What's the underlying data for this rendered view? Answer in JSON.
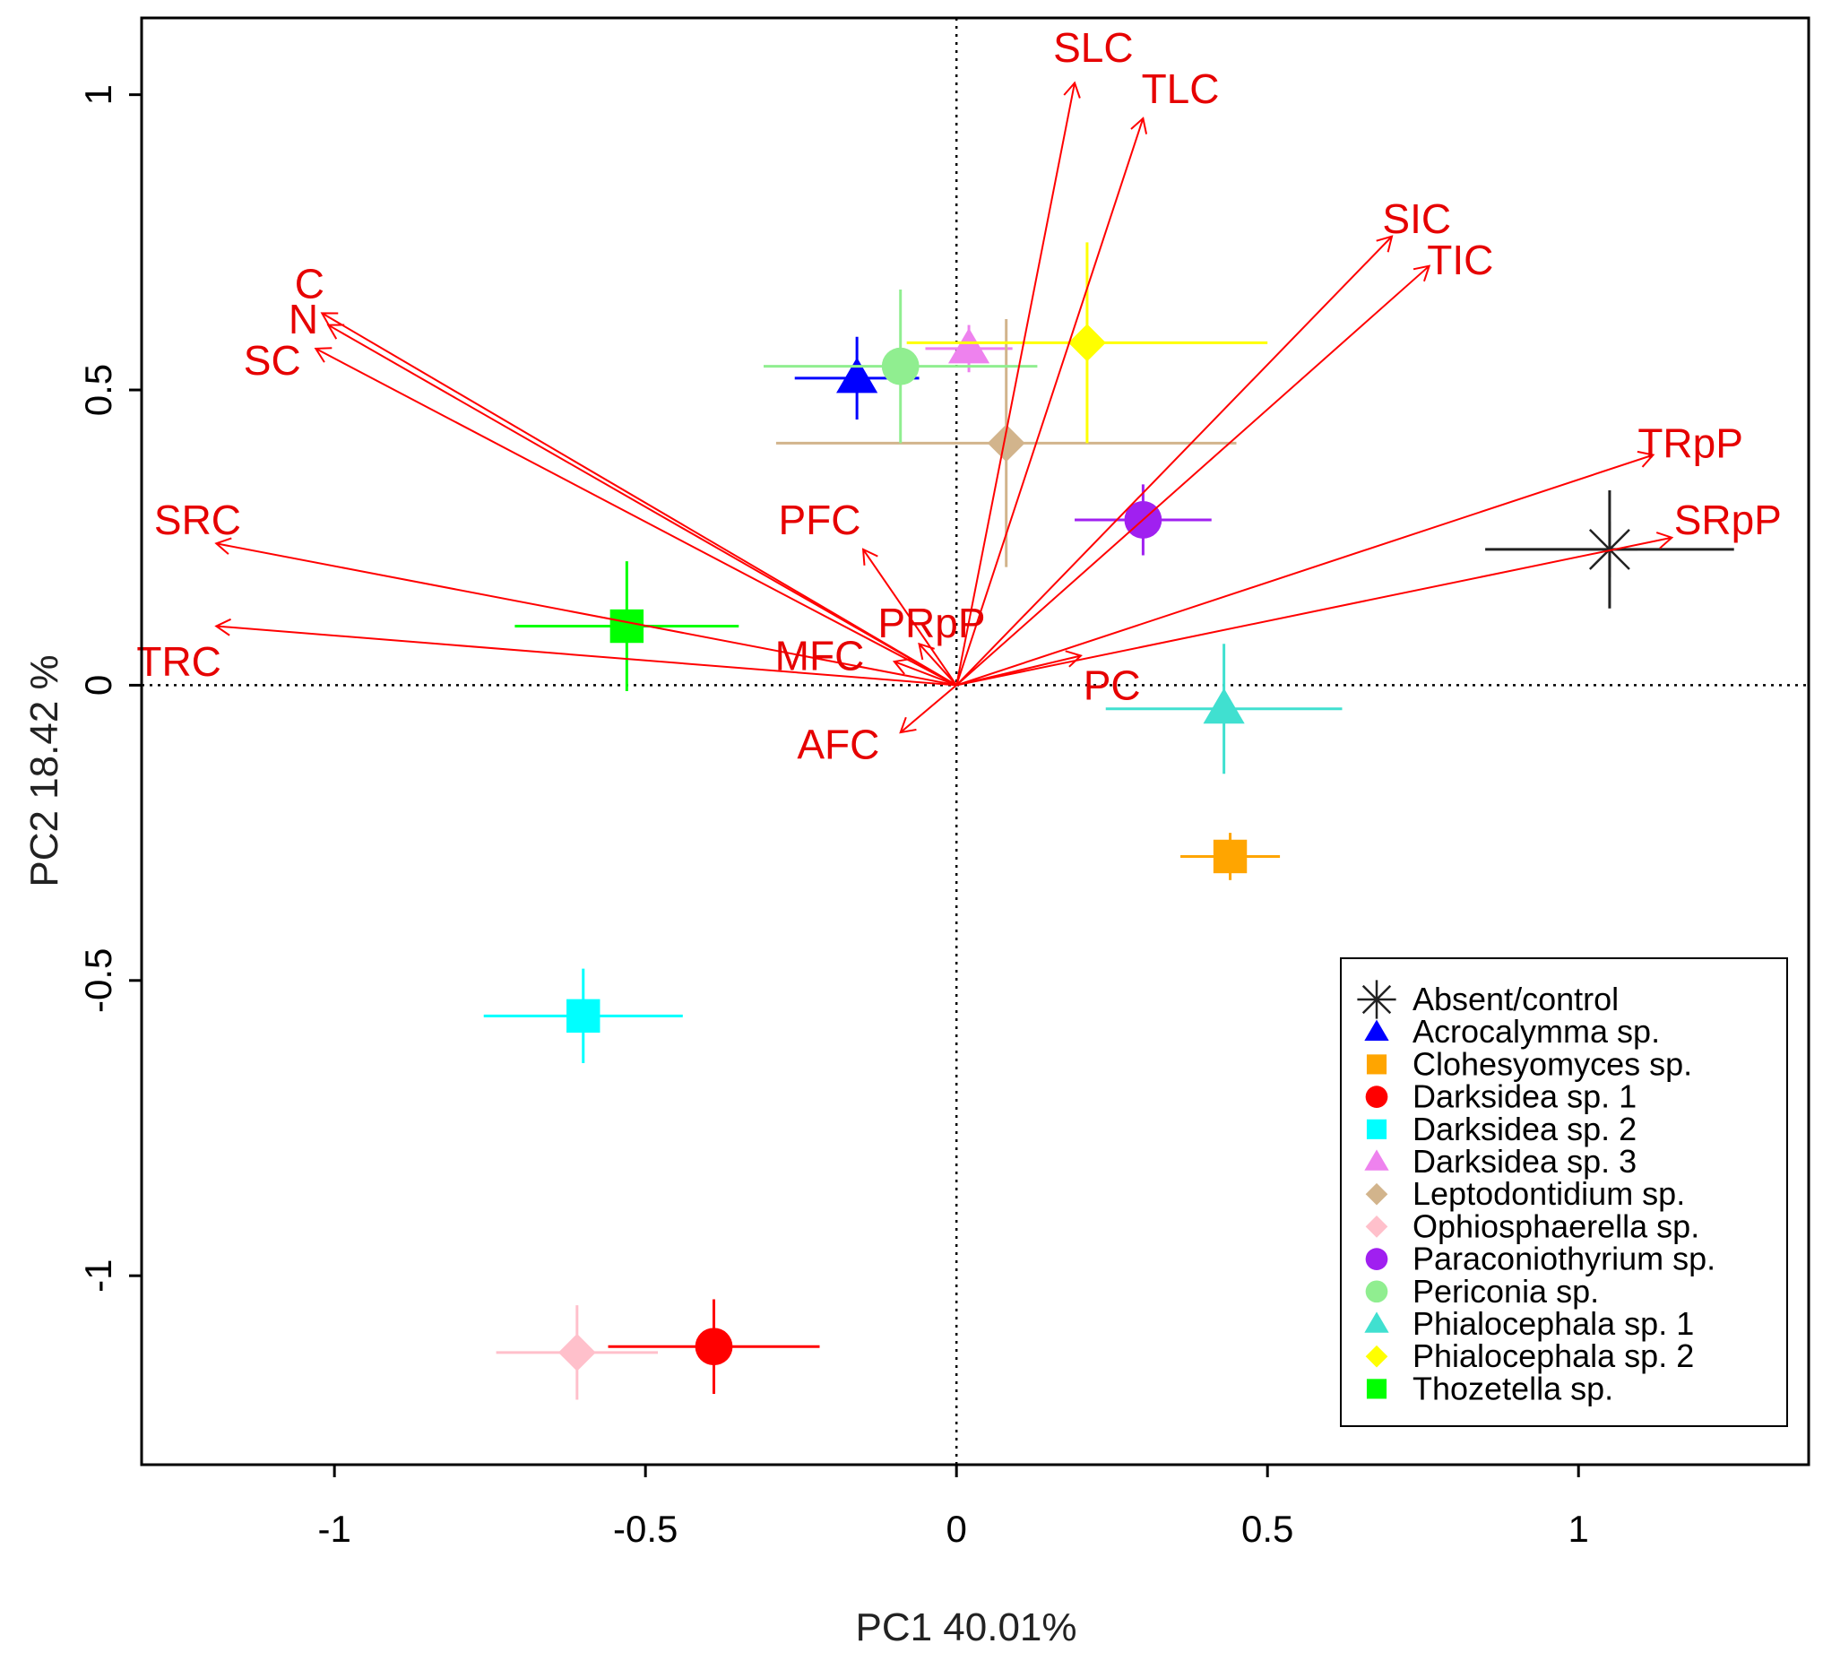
{
  "chart_data": {
    "type": "scatter",
    "subtype": "pca-biplot",
    "title": "",
    "xlabel": "PC1 40.01%",
    "ylabel": "PC2 18.42 %",
    "xlim": [
      -1.31,
      1.37
    ],
    "ylim": [
      -1.32,
      1.13
    ],
    "x_ticks": [
      {
        "value": -1,
        "label": "-1"
      },
      {
        "value": -0.5,
        "label": "-0.5"
      },
      {
        "value": 0,
        "label": "0"
      },
      {
        "value": 0.5,
        "label": "0.5"
      },
      {
        "value": 1,
        "label": "1"
      }
    ],
    "y_ticks": [
      {
        "value": 1,
        "label": "1"
      },
      {
        "value": 0.5,
        "label": "0.5"
      },
      {
        "value": 0,
        "label": "0"
      },
      {
        "value": -0.5,
        "label": "-0.5"
      },
      {
        "value": -1,
        "label": "-1"
      }
    ],
    "reference_lines": {
      "x": 0,
      "y": 0,
      "style": "dotted"
    },
    "arrow_color": "#ff0000",
    "loadings": [
      {
        "label": "SLC",
        "x": 0.19,
        "y": 1.02,
        "label_x": 0.22,
        "label_y": 1.08
      },
      {
        "label": "TLC",
        "x": 0.3,
        "y": 0.96,
        "label_x": 0.36,
        "label_y": 1.01
      },
      {
        "label": "SIC",
        "x": 0.7,
        "y": 0.76,
        "label_x": 0.74,
        "label_y": 0.79
      },
      {
        "label": "TIC",
        "x": 0.76,
        "y": 0.71,
        "label_x": 0.81,
        "label_y": 0.72
      },
      {
        "label": "C",
        "x": -1.02,
        "y": 0.63,
        "label_x": -1.04,
        "label_y": 0.68
      },
      {
        "label": "N",
        "x": -1.01,
        "y": 0.61,
        "label_x": -1.05,
        "label_y": 0.62
      },
      {
        "label": "SC",
        "x": -1.03,
        "y": 0.57,
        "label_x": -1.1,
        "label_y": 0.55
      },
      {
        "label": "SRC",
        "x": -1.19,
        "y": 0.24,
        "label_x": -1.22,
        "label_y": 0.28
      },
      {
        "label": "TRC",
        "x": -1.19,
        "y": 0.1,
        "label_x": -1.25,
        "label_y": 0.04
      },
      {
        "label": "TRpP",
        "x": 1.12,
        "y": 0.39,
        "label_x": 1.18,
        "label_y": 0.41
      },
      {
        "label": "SRpP",
        "x": 1.15,
        "y": 0.25,
        "label_x": 1.24,
        "label_y": 0.28
      },
      {
        "label": "PFC",
        "x": -0.15,
        "y": 0.23,
        "label_x": -0.22,
        "label_y": 0.28
      },
      {
        "label": "PRpP",
        "x": -0.06,
        "y": 0.07,
        "label_x": -0.04,
        "label_y": 0.105
      },
      {
        "label": "MFC",
        "x": -0.1,
        "y": 0.04,
        "label_x": -0.22,
        "label_y": 0.05
      },
      {
        "label": "PC",
        "x": 0.2,
        "y": 0.05,
        "label_x": 0.25,
        "label_y": 0.0
      },
      {
        "label": "AFC",
        "x": -0.09,
        "y": -0.08,
        "label_x": -0.19,
        "label_y": -0.1
      }
    ],
    "series": [
      {
        "name": "Absent/control",
        "color": "#222222",
        "shape": "asterisk",
        "x": 1.05,
        "y": 0.23,
        "x_err": 0.2,
        "y_err": 0.1
      },
      {
        "name": "Acrocalymma sp.",
        "color": "#0000ff",
        "shape": "triangle",
        "x": -0.16,
        "y": 0.52,
        "x_err": 0.1,
        "y_err": 0.07
      },
      {
        "name": "Clohesyomyces sp.",
        "color": "#ffa500",
        "shape": "square",
        "x": 0.44,
        "y": -0.29,
        "x_err": 0.08,
        "y_err": 0.04
      },
      {
        "name": "Darksidea sp. 1",
        "color": "#ff0000",
        "shape": "circle",
        "x": -0.39,
        "y": -1.12,
        "x_err": 0.17,
        "y_err": 0.08
      },
      {
        "name": "Darksidea sp. 2",
        "color": "#00ffff",
        "shape": "square",
        "x": -0.6,
        "y": -0.56,
        "x_err": 0.16,
        "y_err": 0.08
      },
      {
        "name": "Darksidea sp. 3",
        "color": "#ee82ee",
        "shape": "triangle",
        "x": 0.02,
        "y": 0.57,
        "x_err": 0.07,
        "y_err": 0.04
      },
      {
        "name": "Leptodontidium sp.",
        "color": "#d2b48c",
        "shape": "diamond",
        "x": 0.08,
        "y": 0.41,
        "x_err": 0.37,
        "y_err": 0.21
      },
      {
        "name": "Ophiosphaerella sp.",
        "color": "#ffc0cb",
        "shape": "diamond",
        "x": -0.61,
        "y": -1.13,
        "x_err": 0.13,
        "y_err": 0.08
      },
      {
        "name": "Paraconiothyrium sp.",
        "color": "#a020f0",
        "shape": "circle",
        "x": 0.3,
        "y": 0.28,
        "x_err": 0.11,
        "y_err": 0.06
      },
      {
        "name": "Periconia sp.",
        "color": "#90ee90",
        "shape": "circle",
        "x": -0.09,
        "y": 0.54,
        "x_err": 0.22,
        "y_err": 0.13
      },
      {
        "name": "Phialocephala sp. 1",
        "color": "#40e0d0",
        "shape": "triangle",
        "x": 0.43,
        "y": -0.04,
        "x_err": 0.19,
        "y_err": 0.11
      },
      {
        "name": "Phialocephala sp. 2",
        "color": "#ffff00",
        "shape": "diamond",
        "x": 0.21,
        "y": 0.58,
        "x_err": 0.29,
        "y_err": 0.17
      },
      {
        "name": "Thozetella sp.",
        "color": "#00ff00",
        "shape": "square",
        "x": -0.53,
        "y": 0.1,
        "x_err": 0.18,
        "y_err": 0.11
      }
    ],
    "legend": {
      "position": "bottom-right"
    }
  }
}
